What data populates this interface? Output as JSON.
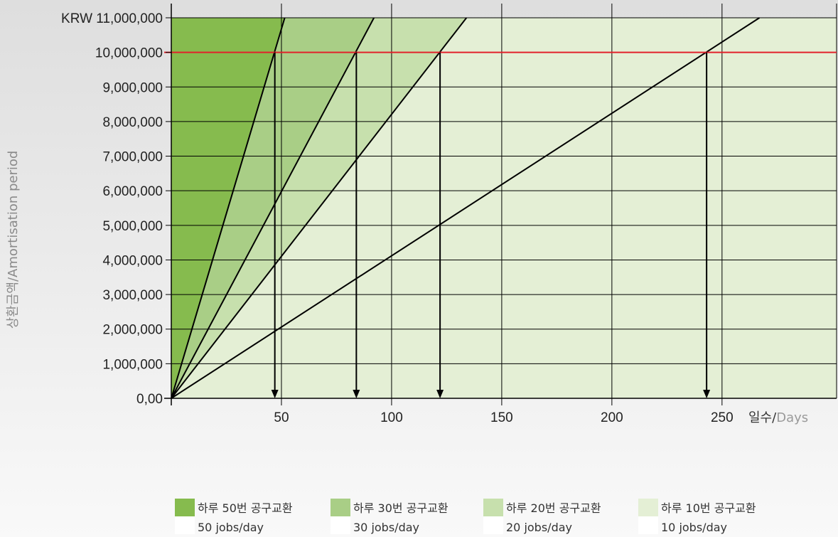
{
  "chart_data": {
    "type": "area",
    "y_prefix": "KRW",
    "y_ticks": [
      0,
      1000000,
      2000000,
      3000000,
      4000000,
      5000000,
      6000000,
      7000000,
      8000000,
      9000000,
      10000000,
      11000000
    ],
    "y_tick_labels": [
      "0,00",
      "1,000,000",
      "2,000,000",
      "3,000,000",
      "4,000,000",
      "5,000,000",
      "6,000,000",
      "7,000,000",
      "8,000,000",
      "9,000,000",
      "10,000,000",
      "KRW 11,000,000"
    ],
    "x_ticks": [
      50,
      100,
      150,
      200,
      250
    ],
    "x_tick_labels": [
      "50",
      "100",
      "150",
      "200",
      "250"
    ],
    "xlim": [
      0,
      302
    ],
    "ylim": [
      0,
      11000000
    ],
    "grid": true,
    "ylabel": {
      "ko": "상환금액",
      "sep": "/",
      "en": "Amortisation period"
    },
    "xlabel": {
      "ko": "일수",
      "sep": "/",
      "en": "Days"
    },
    "threshold": {
      "value": 10000000,
      "label": "10,000,000",
      "color": "#e2222b"
    },
    "series": [
      {
        "name_ko": "하루 50번 공구교환",
        "name_en": "50 jobs/day",
        "color": "#86bb4e",
        "days_at_threshold": 47,
        "points": [
          [
            0,
            0
          ],
          [
            47,
            10000000
          ],
          [
            51.5,
            11000000
          ]
        ]
      },
      {
        "name_ko": "하루 30번 공구교환",
        "name_en": "30 jobs/day",
        "color": "#a9ce86",
        "days_at_threshold": 84,
        "points": [
          [
            0,
            0
          ],
          [
            84,
            10000000
          ],
          [
            92,
            11000000
          ]
        ]
      },
      {
        "name_ko": "하루 20번 공구교환",
        "name_en": "20 jobs/day",
        "color": "#c7e0ad",
        "days_at_threshold": 122,
        "points": [
          [
            0,
            0
          ],
          [
            122,
            10000000
          ],
          [
            134,
            11000000
          ]
        ]
      },
      {
        "name_ko": "하루 10번 공구교환",
        "name_en": "10 jobs/day",
        "color": "#e4efd5",
        "days_at_threshold": 243,
        "points": [
          [
            0,
            0
          ],
          [
            243,
            10000000
          ],
          [
            267,
            11000000
          ]
        ]
      }
    ],
    "legend_position": "bottom"
  }
}
